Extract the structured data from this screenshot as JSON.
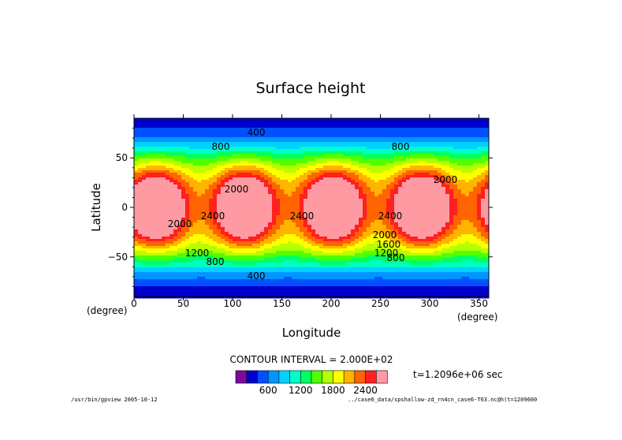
{
  "chart_data": {
    "type": "heatmap",
    "title": "Surface height",
    "xlabel": "Longitude",
    "ylabel": "Latitude",
    "x_unit": "(degree)",
    "y_unit": "(degree)",
    "xlim": [
      0,
      360
    ],
    "ylim": [
      -90,
      90
    ],
    "x_ticks": [
      0,
      50,
      100,
      150,
      200,
      250,
      300,
      350
    ],
    "y_ticks": [
      50,
      0,
      -50
    ],
    "x_tick_labels": [
      "0",
      "50",
      "100",
      "150",
      "200",
      "250",
      "300",
      "350"
    ],
    "y_tick_labels": [
      "50",
      "0",
      "−50"
    ],
    "contour_interval_text": "CONTOUR INTERVAL = 2.000E+02",
    "time_text": "t=1.2096e+06 sec",
    "colorbar": {
      "levels": [
        0,
        200,
        400,
        600,
        800,
        1000,
        1200,
        1400,
        1600,
        1800,
        2000,
        2200,
        2400,
        2600
      ],
      "tick_labels": [
        "600",
        "1200",
        "1800",
        "2400"
      ],
      "colors": [
        "#7a0aa0",
        "#0000cd",
        "#0050ff",
        "#0096ff",
        "#00d2ff",
        "#00ffc8",
        "#00ff64",
        "#50ff00",
        "#b4ff00",
        "#ffff00",
        "#ffb400",
        "#ff6400",
        "#ff2020",
        "#ff9aa2"
      ]
    },
    "contour_labels": [
      "400",
      "800",
      "1200",
      "1600",
      "2000",
      "2400"
    ],
    "field": {
      "pattern": "4 zonal waves",
      "max_center_longitudes": [
        67,
        158,
        248,
        338
      ],
      "max_value": 2400,
      "min_value": 400
    }
  },
  "footer": {
    "left": "/usr/bin/gpview  2005-10-12",
    "right": "../case6_data/spshallow-zd_rn4cn_case6-T63.nc@h(t=1209600"
  }
}
